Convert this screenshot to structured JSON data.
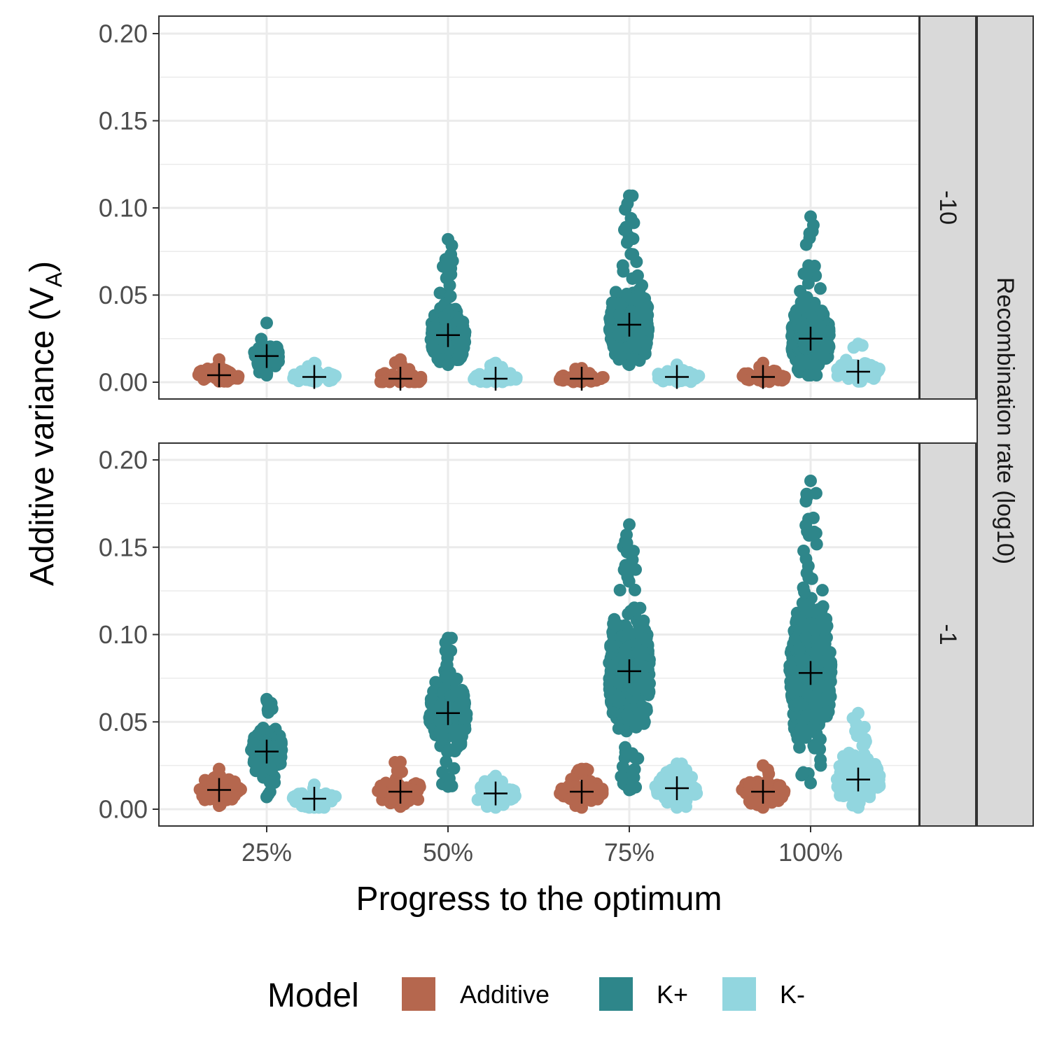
{
  "chart_data": {
    "type": "scatter",
    "subtype": "beeswarm with mean markers",
    "ylabel_main": "Additive variance (V",
    "ylabel_sub": "A",
    "ylabel_close": ")",
    "xlabel": "Progress to the optimum",
    "categories": [
      "25%",
      "50%",
      "75%",
      "100%"
    ],
    "ylim": [
      0,
      0.2
    ],
    "y_ticks": [
      "0.00",
      "0.05",
      "0.10",
      "0.15",
      "0.20"
    ],
    "y_tick_values": [
      0,
      0.05,
      0.1,
      0.15,
      0.2
    ],
    "grid": true,
    "facet_title": "Recombination rate (log10)",
    "legend": {
      "title": "Model",
      "position": "bottom",
      "entries": [
        {
          "label": "Additive",
          "color": "#b5674e"
        },
        {
          "label": "K+",
          "color": "#2e868a"
        },
        {
          "label": "K-",
          "color": "#92d6df"
        }
      ]
    },
    "mean_marker_color": "#000000",
    "panels": [
      {
        "facet": "-10",
        "groups": [
          {
            "category": "25%",
            "series": "Additive",
            "mean": 0.004,
            "min": 0.0005,
            "max": 0.013
          },
          {
            "category": "25%",
            "series": "K+",
            "mean": 0.015,
            "min": 0.004,
            "max": 0.034
          },
          {
            "category": "25%",
            "series": "K-",
            "mean": 0.003,
            "min": 0.0005,
            "max": 0.011
          },
          {
            "category": "50%",
            "series": "Additive",
            "mean": 0.002,
            "min": 0.0002,
            "max": 0.013
          },
          {
            "category": "50%",
            "series": "K+",
            "mean": 0.027,
            "min": 0.01,
            "max": 0.082
          },
          {
            "category": "50%",
            "series": "K-",
            "mean": 0.002,
            "min": 0.0002,
            "max": 0.011
          },
          {
            "category": "75%",
            "series": "Additive",
            "mean": 0.002,
            "min": 0.0002,
            "max": 0.008
          },
          {
            "category": "75%",
            "series": "K+",
            "mean": 0.033,
            "min": 0.01,
            "max": 0.107
          },
          {
            "category": "75%",
            "series": "K-",
            "mean": 0.003,
            "min": 0.0003,
            "max": 0.01
          },
          {
            "category": "100%",
            "series": "Additive",
            "mean": 0.003,
            "min": 0.0003,
            "max": 0.011
          },
          {
            "category": "100%",
            "series": "K+",
            "mean": 0.025,
            "min": 0.004,
            "max": 0.095
          },
          {
            "category": "100%",
            "series": "K-",
            "mean": 0.006,
            "min": 0.0005,
            "max": 0.022
          }
        ]
      },
      {
        "facet": "-1",
        "groups": [
          {
            "category": "25%",
            "series": "Additive",
            "mean": 0.011,
            "min": 0.002,
            "max": 0.023
          },
          {
            "category": "25%",
            "series": "K+",
            "mean": 0.033,
            "min": 0.007,
            "max": 0.063
          },
          {
            "category": "25%",
            "series": "K-",
            "mean": 0.006,
            "min": 0.001,
            "max": 0.014
          },
          {
            "category": "50%",
            "series": "Additive",
            "mean": 0.01,
            "min": 0.0015,
            "max": 0.027
          },
          {
            "category": "50%",
            "series": "K+",
            "mean": 0.055,
            "min": 0.013,
            "max": 0.098
          },
          {
            "category": "50%",
            "series": "K-",
            "mean": 0.009,
            "min": 0.001,
            "max": 0.019
          },
          {
            "category": "75%",
            "series": "Additive",
            "mean": 0.01,
            "min": 0.001,
            "max": 0.023
          },
          {
            "category": "75%",
            "series": "K+",
            "mean": 0.079,
            "min": 0.011,
            "max": 0.163
          },
          {
            "category": "75%",
            "series": "K-",
            "mean": 0.012,
            "min": 0.001,
            "max": 0.026
          },
          {
            "category": "100%",
            "series": "Additive",
            "mean": 0.01,
            "min": 0.001,
            "max": 0.025
          },
          {
            "category": "100%",
            "series": "K+",
            "mean": 0.078,
            "min": 0.015,
            "max": 0.188
          },
          {
            "category": "100%",
            "series": "K-",
            "mean": 0.017,
            "min": 0.001,
            "max": 0.055
          }
        ]
      }
    ]
  }
}
